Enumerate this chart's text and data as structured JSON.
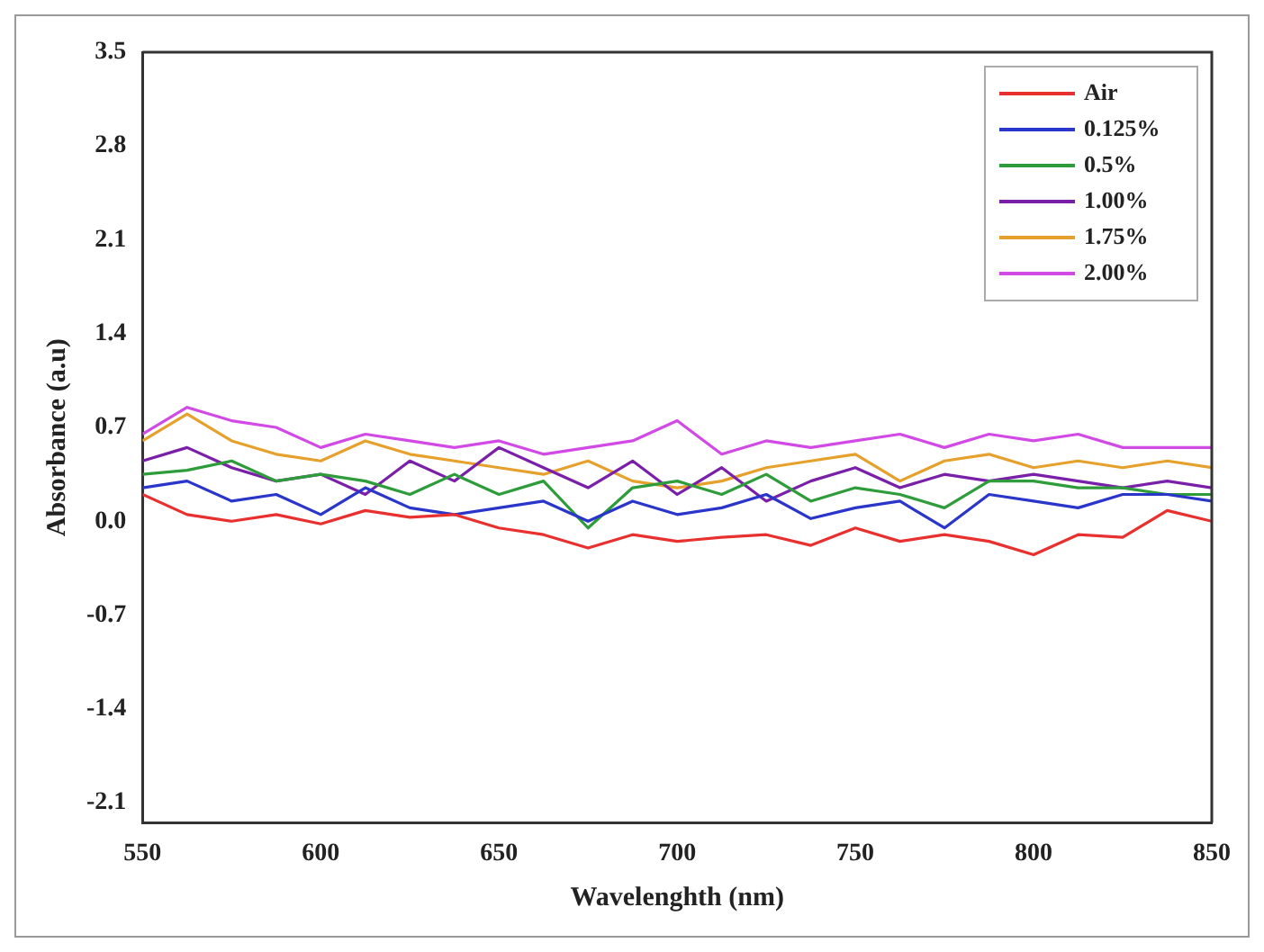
{
  "chart_data": {
    "type": "line",
    "xlabel": "Wavelenghth (nm)",
    "ylabel": "Absorbance (a.u)",
    "x": [
      550,
      562.5,
      575,
      587.5,
      600,
      612.5,
      625,
      637.5,
      650,
      662.5,
      675,
      687.5,
      700,
      712.5,
      725,
      737.5,
      750,
      762.5,
      775,
      787.5,
      800,
      812.5,
      825,
      837.5,
      850
    ],
    "series": [
      {
        "name": "Air",
        "color": "#e8312f",
        "values": [
          0.2,
          0.05,
          0.0,
          0.05,
          -0.02,
          0.08,
          0.03,
          0.05,
          -0.05,
          -0.1,
          -0.2,
          -0.1,
          -0.15,
          -0.12,
          -0.1,
          -0.18,
          -0.05,
          -0.15,
          -0.1,
          -0.15,
          -0.25,
          -0.1,
          -0.12,
          0.08,
          0.0
        ]
      },
      {
        "name": "0.125%",
        "color": "#2a35c9",
        "values": [
          0.25,
          0.3,
          0.15,
          0.2,
          0.05,
          0.25,
          0.1,
          0.05,
          0.1,
          0.15,
          0.0,
          0.15,
          0.05,
          0.1,
          0.2,
          0.02,
          0.1,
          0.15,
          -0.05,
          0.2,
          0.15,
          0.1,
          0.2,
          0.2,
          0.15
        ]
      },
      {
        "name": "0.5%",
        "color": "#2e9c3a",
        "values": [
          0.35,
          0.38,
          0.45,
          0.3,
          0.35,
          0.3,
          0.2,
          0.35,
          0.2,
          0.3,
          -0.05,
          0.25,
          0.3,
          0.2,
          0.35,
          0.15,
          0.25,
          0.2,
          0.1,
          0.3,
          0.3,
          0.25,
          0.25,
          0.2,
          0.2
        ]
      },
      {
        "name": "1.00%",
        "color": "#7a1fa8",
        "values": [
          0.45,
          0.55,
          0.4,
          0.3,
          0.35,
          0.2,
          0.45,
          0.3,
          0.55,
          0.4,
          0.25,
          0.45,
          0.2,
          0.4,
          0.15,
          0.3,
          0.4,
          0.25,
          0.35,
          0.3,
          0.35,
          0.3,
          0.25,
          0.3,
          0.25
        ]
      },
      {
        "name": "1.75%",
        "color": "#e6a02c",
        "values": [
          0.6,
          0.8,
          0.6,
          0.5,
          0.45,
          0.6,
          0.5,
          0.45,
          0.4,
          0.35,
          0.45,
          0.3,
          0.25,
          0.3,
          0.4,
          0.45,
          0.5,
          0.3,
          0.45,
          0.5,
          0.4,
          0.45,
          0.4,
          0.45,
          0.4
        ]
      },
      {
        "name": "2.00%",
        "color": "#d24ae6",
        "values": [
          0.65,
          0.85,
          0.75,
          0.7,
          0.55,
          0.65,
          0.6,
          0.55,
          0.6,
          0.5,
          0.55,
          0.6,
          0.75,
          0.5,
          0.6,
          0.55,
          0.6,
          0.65,
          0.55,
          0.65,
          0.6,
          0.65,
          0.55,
          0.55,
          0.55
        ]
      }
    ],
    "xlim": [
      550,
      850
    ],
    "xticks": [
      550,
      600,
      650,
      700,
      750,
      800,
      850
    ],
    "ylim": [
      -2.25,
      3.5
    ],
    "yticks": [
      -2.1,
      -1.4,
      -0.7,
      {
        "value": 0,
        "label": "0.0"
      },
      0.7,
      1.4,
      2.1,
      2.8,
      3.5
    ],
    "grid": false,
    "legend": "top right",
    "marker": "none",
    "line_style": "solid"
  }
}
